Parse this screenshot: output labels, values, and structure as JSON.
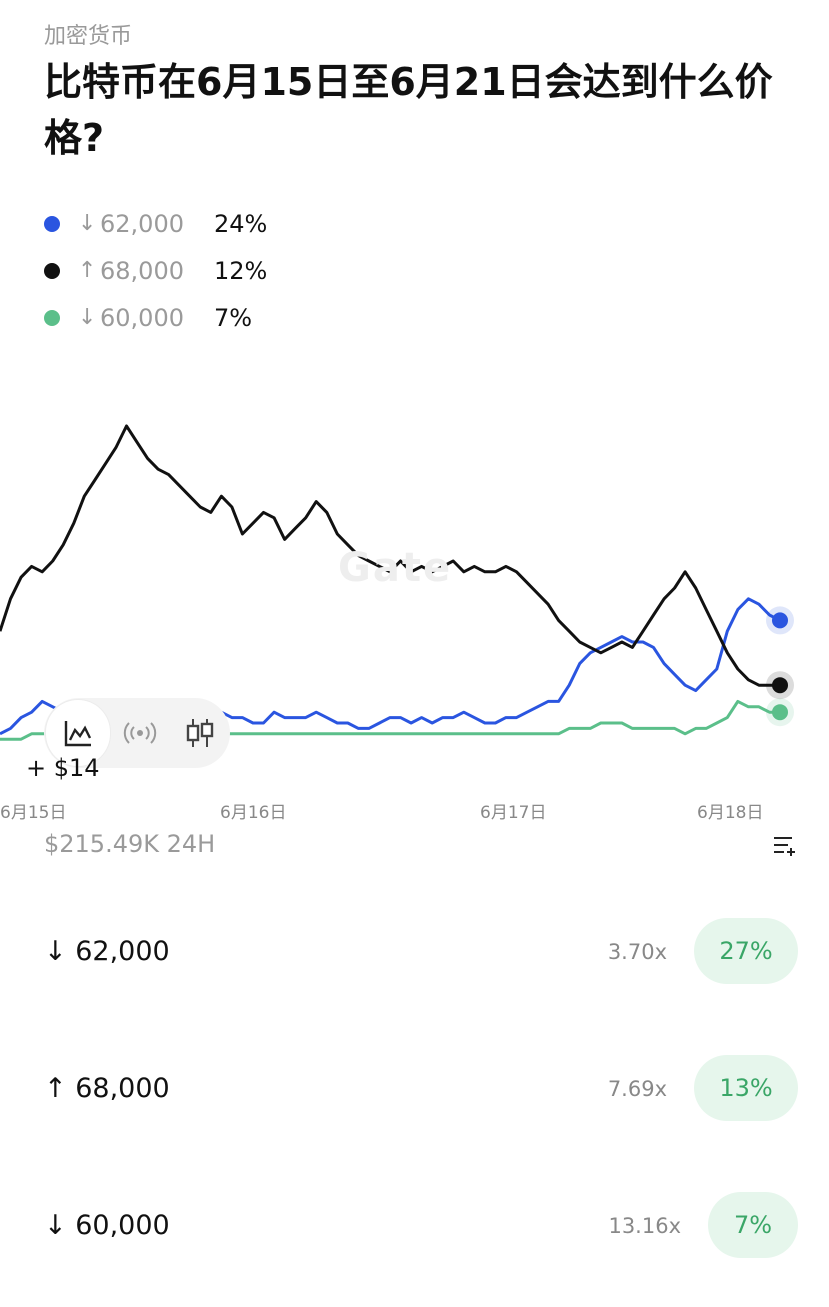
{
  "header": {
    "category": "加密货币",
    "title": "比特币在6月15日至6月21日会达到什么价格?"
  },
  "legend": [
    {
      "dir": "↓",
      "label": "62,000",
      "pct": "24%",
      "color": "#2a55e0"
    },
    {
      "dir": "↑",
      "label": "68,000",
      "pct": "12%",
      "color": "#111111"
    },
    {
      "dir": "↓",
      "label": "60,000",
      "pct": "7%",
      "color": "#5bbf8a"
    }
  ],
  "chart_data": {
    "type": "line",
    "x_ticks": [
      "6月15日",
      "6月16日",
      "6月17日",
      "6月18日"
    ],
    "y_unit": "%",
    "series": [
      {
        "name": "62,000",
        "color": "#2a55e0",
        "values": [
          3,
          4,
          6,
          7,
          9,
          8,
          7,
          6,
          7,
          6,
          6,
          5,
          4,
          5,
          5,
          4,
          3,
          6,
          5,
          4,
          6,
          7,
          6,
          6,
          5,
          5,
          7,
          6,
          6,
          6,
          7,
          6,
          5,
          5,
          4,
          4,
          5,
          6,
          6,
          5,
          6,
          5,
          6,
          6,
          7,
          6,
          5,
          5,
          6,
          6,
          7,
          8,
          9,
          9,
          12,
          16,
          18,
          19,
          20,
          21,
          20,
          20,
          19,
          16,
          14,
          12,
          11,
          13,
          15,
          22,
          26,
          28,
          27,
          25,
          24
        ]
      },
      {
        "name": "68,000",
        "color": "#111111",
        "values": [
          22,
          28,
          32,
          34,
          33,
          35,
          38,
          42,
          47,
          50,
          53,
          56,
          60,
          57,
          54,
          52,
          51,
          49,
          47,
          45,
          44,
          47,
          45,
          40,
          42,
          44,
          43,
          39,
          41,
          43,
          46,
          44,
          40,
          38,
          36,
          35,
          34,
          33,
          35,
          33,
          34,
          33,
          34,
          35,
          33,
          34,
          33,
          33,
          34,
          33,
          31,
          29,
          27,
          24,
          22,
          20,
          19,
          18,
          19,
          20,
          19,
          22,
          25,
          28,
          30,
          33,
          30,
          26,
          22,
          18,
          15,
          13,
          12,
          12,
          12
        ]
      },
      {
        "name": "60,000",
        "color": "#5bbf8a",
        "values": [
          2,
          2,
          2,
          3,
          3,
          3,
          2,
          3,
          3,
          3,
          2,
          2,
          3,
          3,
          3,
          2,
          3,
          3,
          3,
          3,
          3,
          3,
          3,
          3,
          3,
          3,
          3,
          3,
          3,
          3,
          3,
          3,
          3,
          3,
          3,
          3,
          3,
          3,
          3,
          3,
          3,
          3,
          3,
          3,
          3,
          3,
          3,
          3,
          3,
          3,
          3,
          3,
          3,
          3,
          4,
          4,
          4,
          5,
          5,
          5,
          4,
          4,
          4,
          4,
          4,
          3,
          4,
          4,
          5,
          6,
          9,
          8,
          8,
          7,
          7
        ]
      }
    ]
  },
  "watermark": "Gate",
  "volume_change": "+ $14",
  "volume": "$215.49K 24H",
  "rows": [
    {
      "dir": "↓",
      "label": "62,000",
      "multiplier": "3.70x",
      "pct": "27%"
    },
    {
      "dir": "↑",
      "label": "68,000",
      "multiplier": "7.69x",
      "pct": "13%"
    },
    {
      "dir": "↓",
      "label": "60,000",
      "multiplier": "13.16x",
      "pct": "7%"
    }
  ]
}
